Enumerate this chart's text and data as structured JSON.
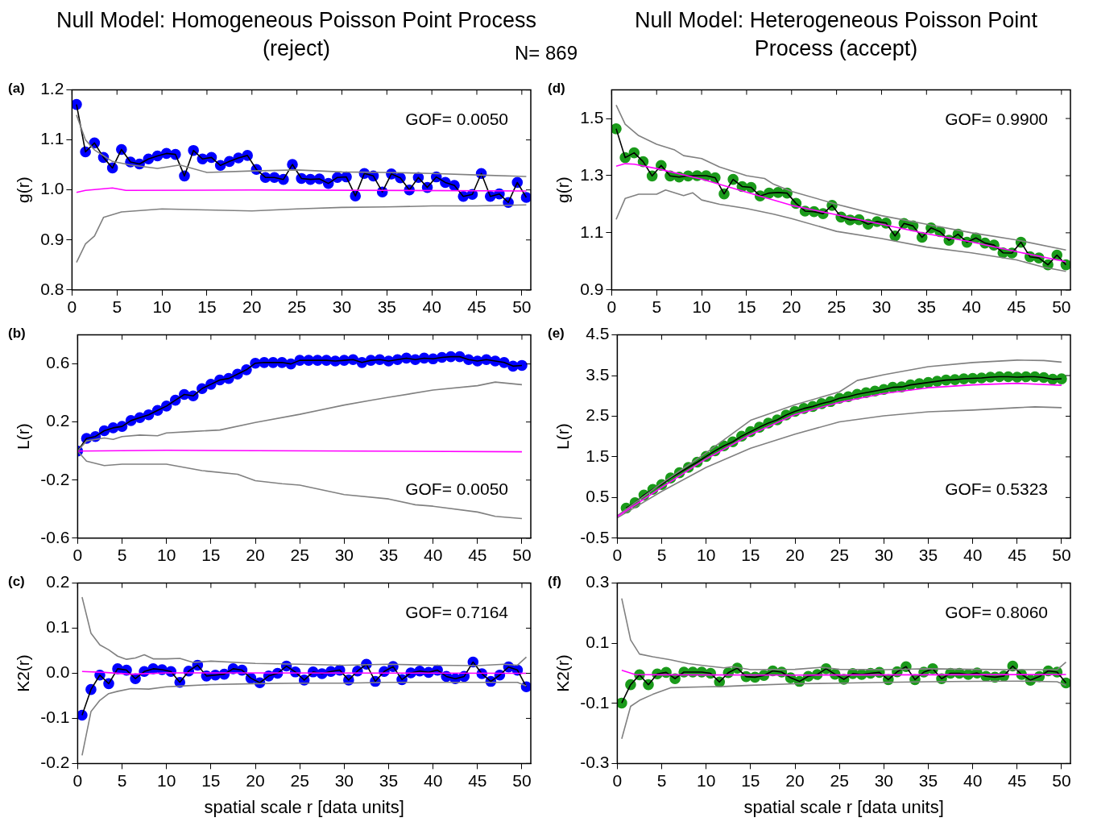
{
  "chart_data": [
    {
      "type": "line",
      "title": "Null Model: Homogeneous Poisson Point Process (reject)",
      "ylabel": "g(r)",
      "annotations": [
        "(a)",
        "GOF= 0.0050",
        "N= 869"
      ],
      "xlim": [
        0,
        51
      ],
      "xticks": [
        0,
        5,
        10,
        15,
        20,
        25,
        30,
        35,
        40,
        45,
        50
      ],
      "ylim": [
        0.8,
        1.2
      ],
      "yticks": [
        0.8,
        0.9,
        {
          "value": 1,
          "label": "1.0"
        },
        1.1,
        1.2
      ],
      "grid": false,
      "legend": false,
      "series": [
        {
          "type": "scatter",
          "color": "#0000ff",
          "marker": "circle",
          "x": [
            0.5,
            1.5,
            2.5,
            3.5,
            4.5,
            5.5,
            6.5,
            7.5,
            8.5,
            9.5,
            10.5,
            11.5,
            12.5,
            13.5,
            14.5,
            15.5,
            16.5,
            17.5,
            18.5,
            19.5,
            20.5,
            21.5,
            22.5,
            23.5,
            24.5,
            25.5,
            26.5,
            27.5,
            28.5,
            29.5,
            30.5,
            31.5,
            32.5,
            33.5,
            34.5,
            35.5,
            36.5,
            37.5,
            38.5,
            39.5,
            40.5,
            41.5,
            42.5,
            43.5,
            44.5,
            45.5,
            46.5,
            47.5,
            48.5,
            49.5,
            50.5
          ],
          "values": [
            1.171,
            1.076,
            1.094,
            1.065,
            1.044,
            1.081,
            1.056,
            1.052,
            1.062,
            1.068,
            1.073,
            1.071,
            1.028,
            1.079,
            1.062,
            1.065,
            1.049,
            1.057,
            1.064,
            1.069,
            1.041,
            1.025,
            1.025,
            1.021,
            1.051,
            1.023,
            1.021,
            1.022,
            1.013,
            1.025,
            1.026,
            0.988,
            1.033,
            1.028,
            0.996,
            1.032,
            1.024,
            1.0,
            1.025,
            1.005,
            1.026,
            1.015,
            1.009,
            0.987,
            0.991,
            1.033,
            0.987,
            0.992,
            0.975,
            1.015,
            0.985
          ]
        },
        {
          "color": "#000000",
          "marker": "none",
          "x": [
            0.5,
            1.5,
            2.5,
            3.5,
            4.5,
            5.5,
            6.5,
            7.5,
            8.5,
            9.5,
            10.5,
            11.5,
            12.5,
            13.5,
            14.5,
            15.5,
            16.5,
            17.5,
            18.5,
            19.5,
            20.5,
            21.5,
            22.5,
            23.5,
            24.5,
            25.5,
            26.5,
            27.5,
            28.5,
            29.5,
            30.5,
            31.5,
            32.5,
            33.5,
            34.5,
            35.5,
            36.5,
            37.5,
            38.5,
            39.5,
            40.5,
            41.5,
            42.5,
            43.5,
            44.5,
            45.5,
            46.5,
            47.5,
            48.5,
            49.5,
            50.5
          ],
          "values": [
            1.171,
            1.076,
            1.094,
            1.065,
            1.044,
            1.081,
            1.056,
            1.052,
            1.062,
            1.068,
            1.073,
            1.071,
            1.028,
            1.079,
            1.062,
            1.065,
            1.049,
            1.057,
            1.064,
            1.069,
            1.041,
            1.025,
            1.025,
            1.021,
            1.051,
            1.023,
            1.021,
            1.022,
            1.013,
            1.025,
            1.026,
            0.988,
            1.033,
            1.028,
            0.996,
            1.032,
            1.024,
            1.0,
            1.025,
            1.005,
            1.026,
            1.015,
            1.009,
            0.987,
            0.991,
            1.033,
            0.987,
            0.992,
            0.975,
            1.015,
            0.985
          ]
        },
        {
          "color": "#808080",
          "marker": "none",
          "x": [
            0.5,
            1.5,
            2.5,
            4.5,
            6.5,
            9.5,
            12,
            15,
            20,
            25,
            30,
            35,
            40,
            45,
            50.5
          ],
          "values": [
            1.15,
            1.1,
            1.08,
            1.057,
            1.05,
            1.043,
            1.05,
            1.035,
            1.038,
            1.04,
            1.036,
            1.035,
            1.033,
            1.03,
            1.027
          ]
        },
        {
          "color": "#808080",
          "marker": "none",
          "x": [
            0.5,
            1.5,
            2.5,
            3.5,
            5.5,
            10,
            15,
            20,
            25,
            30,
            35,
            40,
            45,
            50.5
          ],
          "values": [
            0.855,
            0.892,
            0.908,
            0.945,
            0.956,
            0.962,
            0.96,
            0.958,
            0.962,
            0.965,
            0.966,
            0.968,
            0.968,
            0.97
          ]
        },
        {
          "color": "#ff00ff",
          "marker": "none",
          "x": [
            0.5,
            1.5,
            4.5,
            6,
            20,
            50.5
          ],
          "values": [
            0.995,
            0.999,
            1.004,
            0.999,
            1.0,
            0.998
          ]
        }
      ]
    },
    {
      "type": "line",
      "ylabel": "L(r)",
      "annotations": [
        "(b)",
        "GOF= 0.0050"
      ],
      "xlim": [
        0,
        51
      ],
      "xticks": [
        0,
        5,
        10,
        15,
        20,
        25,
        30,
        35,
        40,
        45,
        50
      ],
      "ylim": [
        -0.6,
        0.8
      ],
      "yticks": [
        -0.6,
        -0.2,
        0.2,
        0.6
      ],
      "grid": false,
      "legend": false,
      "series": [
        {
          "type": "scatter",
          "color": "#0000ff",
          "marker": "circle",
          "x": [
            0,
            1,
            2,
            3,
            4,
            5,
            6,
            7,
            8,
            9,
            10,
            11,
            12,
            13,
            14,
            15,
            16,
            17,
            18,
            19,
            20,
            21,
            22,
            23,
            24,
            25,
            26,
            27,
            28,
            29,
            30,
            31,
            32,
            33,
            34,
            35,
            36,
            37,
            38,
            39,
            40,
            41,
            42,
            43,
            44,
            45,
            46,
            47,
            48,
            49,
            50
          ],
          "values": [
            0,
            0.087,
            0.1,
            0.14,
            0.16,
            0.17,
            0.21,
            0.23,
            0.25,
            0.28,
            0.31,
            0.35,
            0.39,
            0.38,
            0.43,
            0.46,
            0.49,
            0.5,
            0.53,
            0.56,
            0.605,
            0.61,
            0.61,
            0.61,
            0.6,
            0.625,
            0.625,
            0.625,
            0.625,
            0.62,
            0.625,
            0.63,
            0.61,
            0.625,
            0.63,
            0.62,
            0.63,
            0.64,
            0.63,
            0.64,
            0.635,
            0.645,
            0.65,
            0.65,
            0.63,
            0.62,
            0.63,
            0.62,
            0.61,
            0.585,
            0.59
          ]
        },
        {
          "color": "#000000",
          "marker": "none",
          "x": [
            0,
            1,
            2,
            3,
            4,
            5,
            6,
            7,
            8,
            9,
            10,
            11,
            12,
            13,
            14,
            15,
            16,
            17,
            18,
            19,
            20,
            21,
            22,
            23,
            24,
            25,
            26,
            27,
            28,
            29,
            30,
            31,
            32,
            33,
            34,
            35,
            36,
            37,
            38,
            39,
            40,
            41,
            42,
            43,
            44,
            45,
            46,
            47,
            48,
            49,
            50
          ],
          "values": [
            0,
            0.087,
            0.1,
            0.14,
            0.16,
            0.17,
            0.21,
            0.23,
            0.25,
            0.28,
            0.31,
            0.35,
            0.39,
            0.38,
            0.43,
            0.46,
            0.49,
            0.5,
            0.53,
            0.56,
            0.605,
            0.61,
            0.61,
            0.61,
            0.6,
            0.625,
            0.625,
            0.625,
            0.625,
            0.62,
            0.625,
            0.63,
            0.61,
            0.625,
            0.63,
            0.62,
            0.63,
            0.64,
            0.63,
            0.64,
            0.635,
            0.645,
            0.65,
            0.65,
            0.63,
            0.62,
            0.63,
            0.62,
            0.61,
            0.585,
            0.59
          ]
        },
        {
          "color": "#808080",
          "marker": "none",
          "x": [
            0,
            1,
            3,
            4,
            5,
            7,
            9,
            10,
            13,
            16,
            20,
            25,
            30,
            33,
            35,
            40,
            45,
            47,
            50
          ],
          "values": [
            0,
            0.07,
            0.09,
            0.08,
            0.1,
            0.11,
            0.105,
            0.125,
            0.135,
            0.145,
            0.197,
            0.253,
            0.317,
            0.35,
            0.37,
            0.42,
            0.45,
            0.475,
            0.457
          ]
        },
        {
          "color": "#808080",
          "marker": "none",
          "x": [
            0,
            1,
            3,
            5,
            10,
            14,
            18,
            20,
            23,
            25,
            30,
            35,
            38,
            40,
            45,
            47,
            50
          ],
          "values": [
            0,
            -0.07,
            -0.1,
            -0.09,
            -0.09,
            -0.135,
            -0.16,
            -0.204,
            -0.225,
            -0.235,
            -0.3,
            -0.33,
            -0.37,
            -0.38,
            -0.42,
            -0.45,
            -0.465
          ]
        },
        {
          "color": "#ff00ff",
          "marker": "none",
          "x": [
            0,
            10,
            50
          ],
          "values": [
            0,
            0.005,
            -0.005
          ]
        }
      ]
    },
    {
      "type": "line",
      "ylabel": "K2(r)",
      "xlabel": "spatial scale r [data units]",
      "annotations": [
        "(c)",
        "GOF= 0.7164"
      ],
      "xlim": [
        0,
        51
      ],
      "xticks": [
        0,
        5,
        10,
        15,
        20,
        25,
        30,
        35,
        40,
        45,
        50
      ],
      "ylim": [
        -0.2,
        0.2
      ],
      "yticks": [
        -0.2,
        -0.1,
        {
          "value": 0,
          "label": "0.0"
        },
        0.1,
        0.2
      ],
      "grid": false,
      "legend": false,
      "series": [
        {
          "type": "scatter",
          "color": "#0000ff",
          "marker": "circle",
          "x": [
            0.5,
            1.5,
            2.5,
            3.5,
            4.5,
            5.5,
            6.5,
            7.5,
            8.5,
            9.5,
            10.5,
            11.5,
            12.5,
            13.5,
            14.5,
            15.5,
            16.5,
            17.5,
            18.5,
            19.5,
            20.5,
            21.5,
            22.5,
            23.5,
            24.5,
            25.5,
            26.5,
            27.5,
            28.5,
            29.5,
            30.5,
            31.5,
            32.5,
            33.5,
            34.5,
            35.5,
            36.5,
            37.5,
            38.5,
            39.5,
            40.5,
            41.5,
            42.5,
            43.5,
            44.5,
            45.5,
            46.5,
            47.5,
            48.5,
            49.5,
            50.5
          ],
          "values": [
            -0.093,
            -0.036,
            -0.004,
            -0.023,
            0.01,
            0.007,
            -0.012,
            0.004,
            0.01,
            0.008,
            0.004,
            -0.02,
            0.005,
            0.018,
            -0.006,
            -0.004,
            -0.002,
            0.01,
            0.007,
            -0.011,
            -0.021,
            -0.006,
            0.0,
            0.016,
            0.003,
            -0.015,
            0.003,
            -0.001,
            0.004,
            0.007,
            -0.015,
            0.005,
            0.02,
            -0.018,
            0.004,
            0.015,
            -0.014,
            0.001,
            0.005,
            0.002,
            0.007,
            -0.007,
            -0.012,
            -0.007,
            0.025,
            -0.001,
            -0.018,
            -0.004,
            0.014,
            0.007,
            -0.03
          ]
        },
        {
          "color": "#000000",
          "marker": "none",
          "x": [
            0.5,
            1.5,
            2.5,
            3.5,
            4.5,
            5.5,
            6.5,
            7.5,
            8.5,
            9.5,
            10.5,
            11.5,
            12.5,
            13.5,
            14.5,
            15.5,
            16.5,
            17.5,
            18.5,
            19.5,
            20.5,
            21.5,
            22.5,
            23.5,
            24.5,
            25.5,
            26.5,
            27.5,
            28.5,
            29.5,
            30.5,
            31.5,
            32.5,
            33.5,
            34.5,
            35.5,
            36.5,
            37.5,
            38.5,
            39.5,
            40.5,
            41.5,
            42.5,
            43.5,
            44.5,
            45.5,
            46.5,
            47.5,
            48.5,
            49.5,
            50.5
          ],
          "values": [
            -0.093,
            -0.036,
            -0.004,
            -0.023,
            0.01,
            0.007,
            -0.012,
            0.004,
            0.01,
            0.008,
            0.004,
            -0.02,
            0.005,
            0.018,
            -0.006,
            -0.004,
            -0.002,
            0.01,
            0.007,
            -0.011,
            -0.021,
            -0.006,
            0.0,
            0.016,
            0.003,
            -0.015,
            0.003,
            -0.001,
            0.004,
            0.007,
            -0.015,
            0.005,
            0.02,
            -0.018,
            0.004,
            0.015,
            -0.014,
            0.001,
            0.005,
            0.002,
            0.007,
            -0.007,
            -0.012,
            -0.007,
            0.025,
            -0.001,
            -0.018,
            -0.004,
            0.014,
            0.007,
            -0.03
          ]
        },
        {
          "color": "#808080",
          "marker": "none",
          "x": [
            0.5,
            1.5,
            2.5,
            3.5,
            4.5,
            5.5,
            6.5,
            7.5,
            8.5,
            10,
            11.5,
            13,
            15,
            20,
            25,
            30,
            35,
            40,
            45,
            48,
            49.5,
            50.5
          ],
          "values": [
            0.169,
            0.089,
            0.063,
            0.052,
            0.038,
            0.031,
            0.034,
            0.041,
            0.032,
            0.032,
            0.033,
            0.024,
            0.027,
            0.022,
            0.02,
            0.018,
            0.02,
            0.018,
            0.017,
            0.02,
            0.018,
            0.036
          ]
        },
        {
          "color": "#808080",
          "marker": "none",
          "x": [
            0.5,
            1.5,
            2.5,
            3.5,
            4.5,
            6,
            8,
            10,
            12,
            15,
            20,
            25,
            30,
            35,
            40,
            45,
            49.5,
            50.5
          ],
          "values": [
            -0.182,
            -0.085,
            -0.06,
            -0.045,
            -0.04,
            -0.034,
            -0.035,
            -0.03,
            -0.028,
            -0.025,
            -0.023,
            -0.022,
            -0.022,
            -0.02,
            -0.02,
            -0.02,
            -0.02,
            -0.028
          ]
        },
        {
          "color": "#ff00ff",
          "marker": "none",
          "x": [
            0.5,
            3,
            6,
            10,
            50.5
          ],
          "values": [
            0.004,
            0.002,
            -0.002,
            0.001,
            0.0
          ]
        }
      ]
    },
    {
      "type": "line",
      "title": "Null Model: Heterogeneous Poisson Point Process (accept)",
      "ylabel": "g(r)",
      "annotations": [
        "(d)",
        "GOF= 0.9900"
      ],
      "xlim": [
        0,
        51
      ],
      "xticks": [
        0,
        5,
        10,
        15,
        20,
        25,
        30,
        35,
        40,
        45,
        50
      ],
      "ylim": [
        0.9,
        1.6
      ],
      "yticks": [
        0.9,
        1.1,
        1.3,
        1.5
      ],
      "grid": false,
      "legend": false,
      "series": [
        {
          "type": "scatter",
          "color": "#1a9a1a",
          "marker": "circle",
          "x": [
            0.5,
            1.5,
            2.5,
            3.5,
            4.5,
            5.5,
            6.5,
            7.5,
            8.5,
            9.5,
            10.5,
            11.5,
            12.5,
            13.5,
            14.5,
            15.5,
            16.5,
            17.5,
            18.5,
            19.5,
            20.5,
            21.5,
            22.5,
            23.5,
            24.5,
            25.5,
            26.5,
            27.5,
            28.5,
            29.5,
            30.5,
            31.5,
            32.5,
            33.5,
            34.5,
            35.5,
            36.5,
            37.5,
            38.5,
            39.5,
            40.5,
            41.5,
            42.5,
            43.5,
            44.5,
            45.5,
            46.5,
            47.5,
            48.5,
            49.5,
            50.5
          ],
          "values": [
            1.464,
            1.363,
            1.38,
            1.349,
            1.299,
            1.336,
            1.299,
            1.295,
            1.299,
            1.3,
            1.3,
            1.293,
            1.236,
            1.287,
            1.262,
            1.259,
            1.229,
            1.239,
            1.241,
            1.239,
            1.203,
            1.176,
            1.174,
            1.167,
            1.196,
            1.155,
            1.145,
            1.146,
            1.13,
            1.139,
            1.134,
            1.089,
            1.133,
            1.124,
            1.084,
            1.117,
            1.104,
            1.074,
            1.095,
            1.067,
            1.082,
            1.064,
            1.057,
            1.03,
            1.029,
            1.067,
            1.016,
            1.012,
            0.988,
            1.022,
            0.988
          ]
        },
        {
          "color": "#000000",
          "marker": "none",
          "x": [
            0.5,
            1.5,
            2.5,
            3.5,
            4.5,
            5.5,
            6.5,
            7.5,
            8.5,
            9.5,
            10.5,
            11.5,
            12.5,
            13.5,
            14.5,
            15.5,
            16.5,
            17.5,
            18.5,
            19.5,
            20.5,
            21.5,
            22.5,
            23.5,
            24.5,
            25.5,
            26.5,
            27.5,
            28.5,
            29.5,
            30.5,
            31.5,
            32.5,
            33.5,
            34.5,
            35.5,
            36.5,
            37.5,
            38.5,
            39.5,
            40.5,
            41.5,
            42.5,
            43.5,
            44.5,
            45.5,
            46.5,
            47.5,
            48.5,
            49.5,
            50.5
          ],
          "values": [
            1.464,
            1.363,
            1.38,
            1.349,
            1.299,
            1.336,
            1.299,
            1.295,
            1.299,
            1.3,
            1.3,
            1.293,
            1.236,
            1.287,
            1.262,
            1.259,
            1.229,
            1.239,
            1.241,
            1.239,
            1.203,
            1.176,
            1.174,
            1.167,
            1.196,
            1.155,
            1.145,
            1.146,
            1.13,
            1.139,
            1.134,
            1.089,
            1.133,
            1.124,
            1.084,
            1.117,
            1.104,
            1.074,
            1.095,
            1.067,
            1.082,
            1.064,
            1.057,
            1.03,
            1.029,
            1.067,
            1.016,
            1.012,
            0.988,
            1.022,
            0.988
          ]
        },
        {
          "color": "#808080",
          "marker": "none",
          "x": [
            0.5,
            1.5,
            3,
            5,
            7,
            8,
            10,
            12,
            15,
            17,
            18,
            20,
            25,
            30,
            35,
            40,
            45,
            50.5
          ],
          "values": [
            1.547,
            1.48,
            1.44,
            1.41,
            1.39,
            1.37,
            1.36,
            1.33,
            1.3,
            1.29,
            1.27,
            1.245,
            1.2,
            1.16,
            1.13,
            1.1,
            1.075,
            1.04
          ]
        },
        {
          "color": "#808080",
          "marker": "none",
          "x": [
            0.5,
            1.5,
            3,
            5,
            6,
            8,
            9,
            10,
            12,
            15,
            18,
            20,
            25,
            30,
            35,
            40,
            45,
            48,
            50.5
          ],
          "values": [
            1.147,
            1.22,
            1.235,
            1.235,
            1.25,
            1.23,
            1.24,
            1.215,
            1.2,
            1.185,
            1.165,
            1.15,
            1.105,
            1.08,
            1.05,
            1.03,
            1.005,
            0.98,
            0.965
          ]
        },
        {
          "color": "#ff00ff",
          "marker": "none",
          "x": [
            0.5,
            1.5,
            2.5,
            5,
            10,
            15,
            20,
            25,
            30,
            35,
            40,
            45,
            50.5
          ],
          "values": [
            1.333,
            1.342,
            1.34,
            1.325,
            1.288,
            1.242,
            1.196,
            1.163,
            1.13,
            1.097,
            1.068,
            1.034,
            0.999
          ]
        }
      ]
    },
    {
      "type": "line",
      "ylabel": "L(r)",
      "annotations": [
        "(e)",
        "GOF= 0.5323"
      ],
      "xlim": [
        0,
        51
      ],
      "xticks": [
        0,
        5,
        10,
        15,
        20,
        25,
        30,
        35,
        40,
        45,
        50
      ],
      "ylim": [
        -0.5,
        4.5
      ],
      "yticks": [
        -0.5,
        0.5,
        1.5,
        2.5,
        3.5,
        4.5
      ],
      "grid": false,
      "legend": false,
      "series": [
        {
          "type": "scatter",
          "color": "#1a9a1a",
          "marker": "circle",
          "x": [
            1,
            2,
            3,
            4,
            5,
            6,
            7,
            8,
            9,
            10,
            11,
            12,
            13,
            14,
            15,
            16,
            17,
            18,
            19,
            20,
            21,
            22,
            23,
            24,
            25,
            26,
            27,
            28,
            29,
            30,
            31,
            32,
            33,
            34,
            35,
            36,
            37,
            38,
            39,
            40,
            41,
            42,
            43,
            44,
            45,
            46,
            47,
            48,
            49,
            50
          ],
          "values": [
            0.24,
            0.37,
            0.56,
            0.7,
            0.82,
            0.98,
            1.11,
            1.24,
            1.37,
            1.51,
            1.65,
            1.77,
            1.87,
            2.01,
            2.12,
            2.23,
            2.33,
            2.41,
            2.53,
            2.62,
            2.69,
            2.74,
            2.81,
            2.86,
            2.94,
            2.98,
            3.04,
            3.08,
            3.12,
            3.16,
            3.21,
            3.22,
            3.27,
            3.3,
            3.33,
            3.36,
            3.39,
            3.4,
            3.42,
            3.43,
            3.44,
            3.46,
            3.47,
            3.47,
            3.46,
            3.47,
            3.47,
            3.45,
            3.41,
            3.42
          ]
        },
        {
          "color": "#000000",
          "marker": "none",
          "x": [
            1,
            2,
            3,
            4,
            5,
            6,
            7,
            8,
            9,
            10,
            11,
            12,
            13,
            14,
            15,
            16,
            17,
            18,
            19,
            20,
            21,
            22,
            23,
            24,
            25,
            26,
            27,
            28,
            29,
            30,
            31,
            32,
            33,
            34,
            35,
            36,
            37,
            38,
            39,
            40,
            41,
            42,
            43,
            44,
            45,
            46,
            47,
            48,
            49,
            50
          ],
          "values": [
            0.24,
            0.37,
            0.56,
            0.7,
            0.82,
            0.98,
            1.11,
            1.24,
            1.37,
            1.51,
            1.65,
            1.77,
            1.87,
            2.01,
            2.12,
            2.23,
            2.33,
            2.41,
            2.53,
            2.62,
            2.69,
            2.74,
            2.81,
            2.86,
            2.94,
            2.98,
            3.04,
            3.08,
            3.12,
            3.16,
            3.21,
            3.22,
            3.27,
            3.3,
            3.33,
            3.36,
            3.39,
            3.4,
            3.42,
            3.43,
            3.44,
            3.46,
            3.47,
            3.47,
            3.46,
            3.47,
            3.47,
            3.45,
            3.41,
            3.42
          ]
        },
        {
          "color": "#808080",
          "marker": "none",
          "x": [
            0,
            5,
            10,
            15,
            20,
            25,
            27,
            30,
            35,
            40,
            45,
            48,
            50
          ],
          "values": [
            0.05,
            0.85,
            1.6,
            2.4,
            2.78,
            3.1,
            3.38,
            3.52,
            3.72,
            3.82,
            3.88,
            3.87,
            3.83
          ]
        },
        {
          "color": "#808080",
          "marker": "none",
          "x": [
            0,
            5,
            10,
            15,
            20,
            25,
            30,
            35,
            40,
            45,
            47,
            50
          ],
          "values": [
            0.0,
            0.65,
            1.24,
            1.71,
            2.06,
            2.36,
            2.51,
            2.61,
            2.65,
            2.71,
            2.73,
            2.71
          ]
        },
        {
          "color": "#ff00ff",
          "marker": "none",
          "x": [
            0,
            5,
            10,
            15,
            20,
            25,
            30,
            35,
            40,
            45,
            50
          ],
          "values": [
            0.03,
            0.75,
            1.45,
            2.05,
            2.54,
            2.84,
            3.06,
            3.2,
            3.27,
            3.31,
            3.26
          ]
        }
      ]
    },
    {
      "type": "line",
      "ylabel": "K2(r)",
      "xlabel": "spatial scale r [data units]",
      "annotations": [
        "(f)",
        "GOF= 0.8060"
      ],
      "xlim": [
        0,
        51
      ],
      "xticks": [
        0,
        5,
        10,
        15,
        20,
        25,
        30,
        35,
        40,
        45,
        50
      ],
      "ylim": [
        -0.3,
        0.3
      ],
      "yticks": [
        -0.3,
        -0.1,
        0.1,
        0.3
      ],
      "grid": false,
      "legend": false,
      "series": [
        {
          "type": "scatter",
          "color": "#1a9a1a",
          "marker": "circle",
          "x": [
            0.5,
            1.5,
            2.5,
            3.5,
            4.5,
            5.5,
            6.5,
            7.5,
            8.5,
            9.5,
            10.5,
            11.5,
            12.5,
            13.5,
            14.5,
            15.5,
            16.5,
            17.5,
            18.5,
            19.5,
            20.5,
            21.5,
            22.5,
            23.5,
            24.5,
            25.5,
            26.5,
            27.5,
            28.5,
            29.5,
            30.5,
            31.5,
            32.5,
            33.5,
            34.5,
            35.5,
            36.5,
            37.5,
            38.5,
            39.5,
            40.5,
            41.5,
            42.5,
            43.5,
            44.5,
            45.5,
            46.5,
            47.5,
            48.5,
            49.5,
            50.5
          ],
          "values": [
            -0.099,
            -0.038,
            -0.005,
            -0.038,
            -0.002,
            0.003,
            -0.018,
            0.004,
            0.004,
            0.004,
            0.0,
            -0.029,
            0.002,
            0.017,
            -0.011,
            -0.013,
            -0.007,
            0.008,
            0.004,
            -0.015,
            -0.027,
            -0.01,
            -0.004,
            0.015,
            -0.003,
            -0.02,
            -0.001,
            -0.004,
            0.0,
            0.003,
            -0.021,
            0.005,
            0.022,
            -0.021,
            0.004,
            0.015,
            -0.018,
            0.0,
            0.0,
            -0.004,
            0.001,
            -0.01,
            -0.013,
            -0.009,
            0.024,
            -0.004,
            -0.023,
            -0.011,
            0.008,
            0.004,
            -0.032
          ]
        },
        {
          "color": "#000000",
          "marker": "none",
          "x": [
            0.5,
            1.5,
            2.5,
            3.5,
            4.5,
            5.5,
            6.5,
            7.5,
            8.5,
            9.5,
            10.5,
            11.5,
            12.5,
            13.5,
            14.5,
            15.5,
            16.5,
            17.5,
            18.5,
            19.5,
            20.5,
            21.5,
            22.5,
            23.5,
            24.5,
            25.5,
            26.5,
            27.5,
            28.5,
            29.5,
            30.5,
            31.5,
            32.5,
            33.5,
            34.5,
            35.5,
            36.5,
            37.5,
            38.5,
            39.5,
            40.5,
            41.5,
            42.5,
            43.5,
            44.5,
            45.5,
            46.5,
            47.5,
            48.5,
            49.5,
            50.5
          ],
          "values": [
            -0.099,
            -0.038,
            -0.005,
            -0.038,
            -0.002,
            0.003,
            -0.018,
            0.004,
            0.004,
            0.004,
            0.0,
            -0.029,
            0.002,
            0.017,
            -0.011,
            -0.013,
            -0.007,
            0.008,
            0.004,
            -0.015,
            -0.027,
            -0.01,
            -0.004,
            0.015,
            -0.003,
            -0.02,
            -0.001,
            -0.004,
            0.0,
            0.003,
            -0.021,
            0.005,
            0.022,
            -0.021,
            0.004,
            0.015,
            -0.018,
            0.0,
            0.0,
            -0.004,
            0.001,
            -0.01,
            -0.013,
            -0.009,
            0.024,
            -0.004,
            -0.023,
            -0.011,
            0.008,
            0.004,
            -0.032
          ]
        },
        {
          "color": "#808080",
          "marker": "none",
          "x": [
            0.5,
            1.5,
            2.5,
            4,
            6,
            8,
            10,
            12,
            13,
            15,
            20,
            23,
            25,
            30,
            35,
            40,
            45,
            49.5,
            50.5
          ],
          "values": [
            0.249,
            0.111,
            0.064,
            0.055,
            0.045,
            0.032,
            0.025,
            0.018,
            0.022,
            0.012,
            0.013,
            0.02,
            0.013,
            0.012,
            0.015,
            0.013,
            0.012,
            0.012,
            0.037
          ]
        },
        {
          "color": "#808080",
          "marker": "none",
          "x": [
            0.5,
            1.5,
            2.5,
            4,
            6,
            10,
            12,
            15,
            20,
            25,
            30,
            35,
            40,
            45,
            49.5,
            50.5
          ],
          "values": [
            -0.218,
            -0.11,
            -0.09,
            -0.07,
            -0.048,
            -0.045,
            -0.044,
            -0.04,
            -0.035,
            -0.033,
            -0.03,
            -0.028,
            -0.027,
            -0.026,
            -0.028,
            -0.04
          ]
        },
        {
          "color": "#ff00ff",
          "marker": "none",
          "x": [
            0.5,
            2,
            5,
            20,
            50.5
          ],
          "values": [
            0.01,
            -0.004,
            -0.005,
            -0.006,
            -0.004
          ]
        }
      ]
    }
  ]
}
